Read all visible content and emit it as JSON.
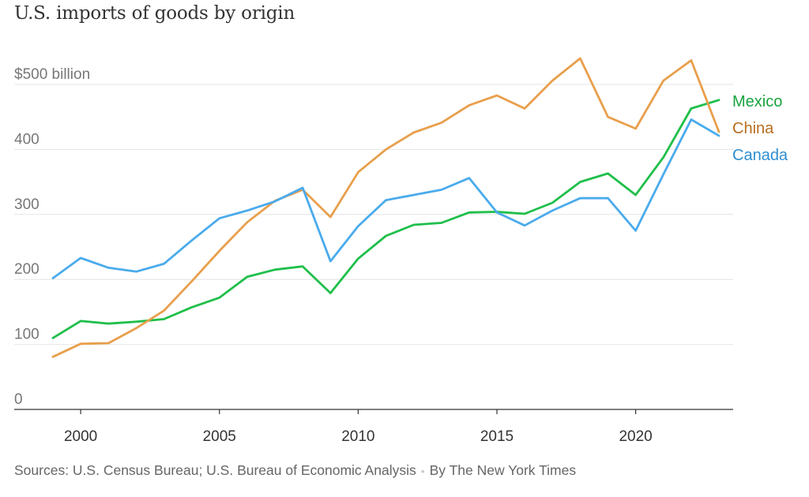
{
  "title": "U.S. imports of goods by origin",
  "source": {
    "sources_text": "Sources: U.S. Census Bureau; U.S. Bureau of Economic Analysis",
    "separator": "•",
    "byline": "By The New York Times"
  },
  "chart_data": {
    "type": "line",
    "title": "U.S. imports of goods by origin",
    "xlabel": "",
    "ylabel": "",
    "xlim": [
      1999,
      2023
    ],
    "ylim": [
      0,
      500
    ],
    "grid": true,
    "legend_placement": "right, at line ends",
    "y_ticks": [
      {
        "value": 0,
        "label": "0"
      },
      {
        "value": 100,
        "label": "100"
      },
      {
        "value": 200,
        "label": "200"
      },
      {
        "value": 300,
        "label": "300"
      },
      {
        "value": 400,
        "label": "400"
      },
      {
        "value": 500,
        "label": "$500 billion"
      }
    ],
    "x_ticks": [
      {
        "value": 2000,
        "label": "2000"
      },
      {
        "value": 2005,
        "label": "2005"
      },
      {
        "value": 2010,
        "label": "2010"
      },
      {
        "value": 2015,
        "label": "2015"
      },
      {
        "value": 2020,
        "label": "2020"
      }
    ],
    "x": [
      1999,
      2000,
      2001,
      2002,
      2003,
      2004,
      2005,
      2006,
      2007,
      2008,
      2009,
      2010,
      2011,
      2012,
      2013,
      2014,
      2015,
      2016,
      2017,
      2018,
      2019,
      2020,
      2021,
      2022,
      2023
    ],
    "series": [
      {
        "name": "Mexico",
        "color": "#1fbf4a",
        "label_color": "#19a33f",
        "values": [
          110,
          136,
          132,
          135,
          139,
          157,
          172,
          204,
          215,
          220,
          179,
          232,
          267,
          284,
          287,
          303,
          304,
          301,
          318,
          350,
          363,
          330,
          388,
          463,
          476
        ]
      },
      {
        "name": "China",
        "color": "#e89f4c",
        "label_color": "#b86d1e",
        "values": [
          81,
          101,
          102,
          125,
          152,
          197,
          244,
          288,
          321,
          338,
          296,
          365,
          400,
          426,
          441,
          468,
          483,
          463,
          506,
          540,
          450,
          432,
          506,
          537,
          427
        ]
      },
      {
        "name": "Canada",
        "color": "#4aabec",
        "label_color": "#2e8fd1",
        "values": [
          202,
          233,
          218,
          212,
          224,
          260,
          294,
          306,
          320,
          341,
          228,
          282,
          322,
          330,
          338,
          356,
          303,
          283,
          306,
          325,
          325,
          275,
          362,
          446,
          421
        ]
      }
    ]
  }
}
